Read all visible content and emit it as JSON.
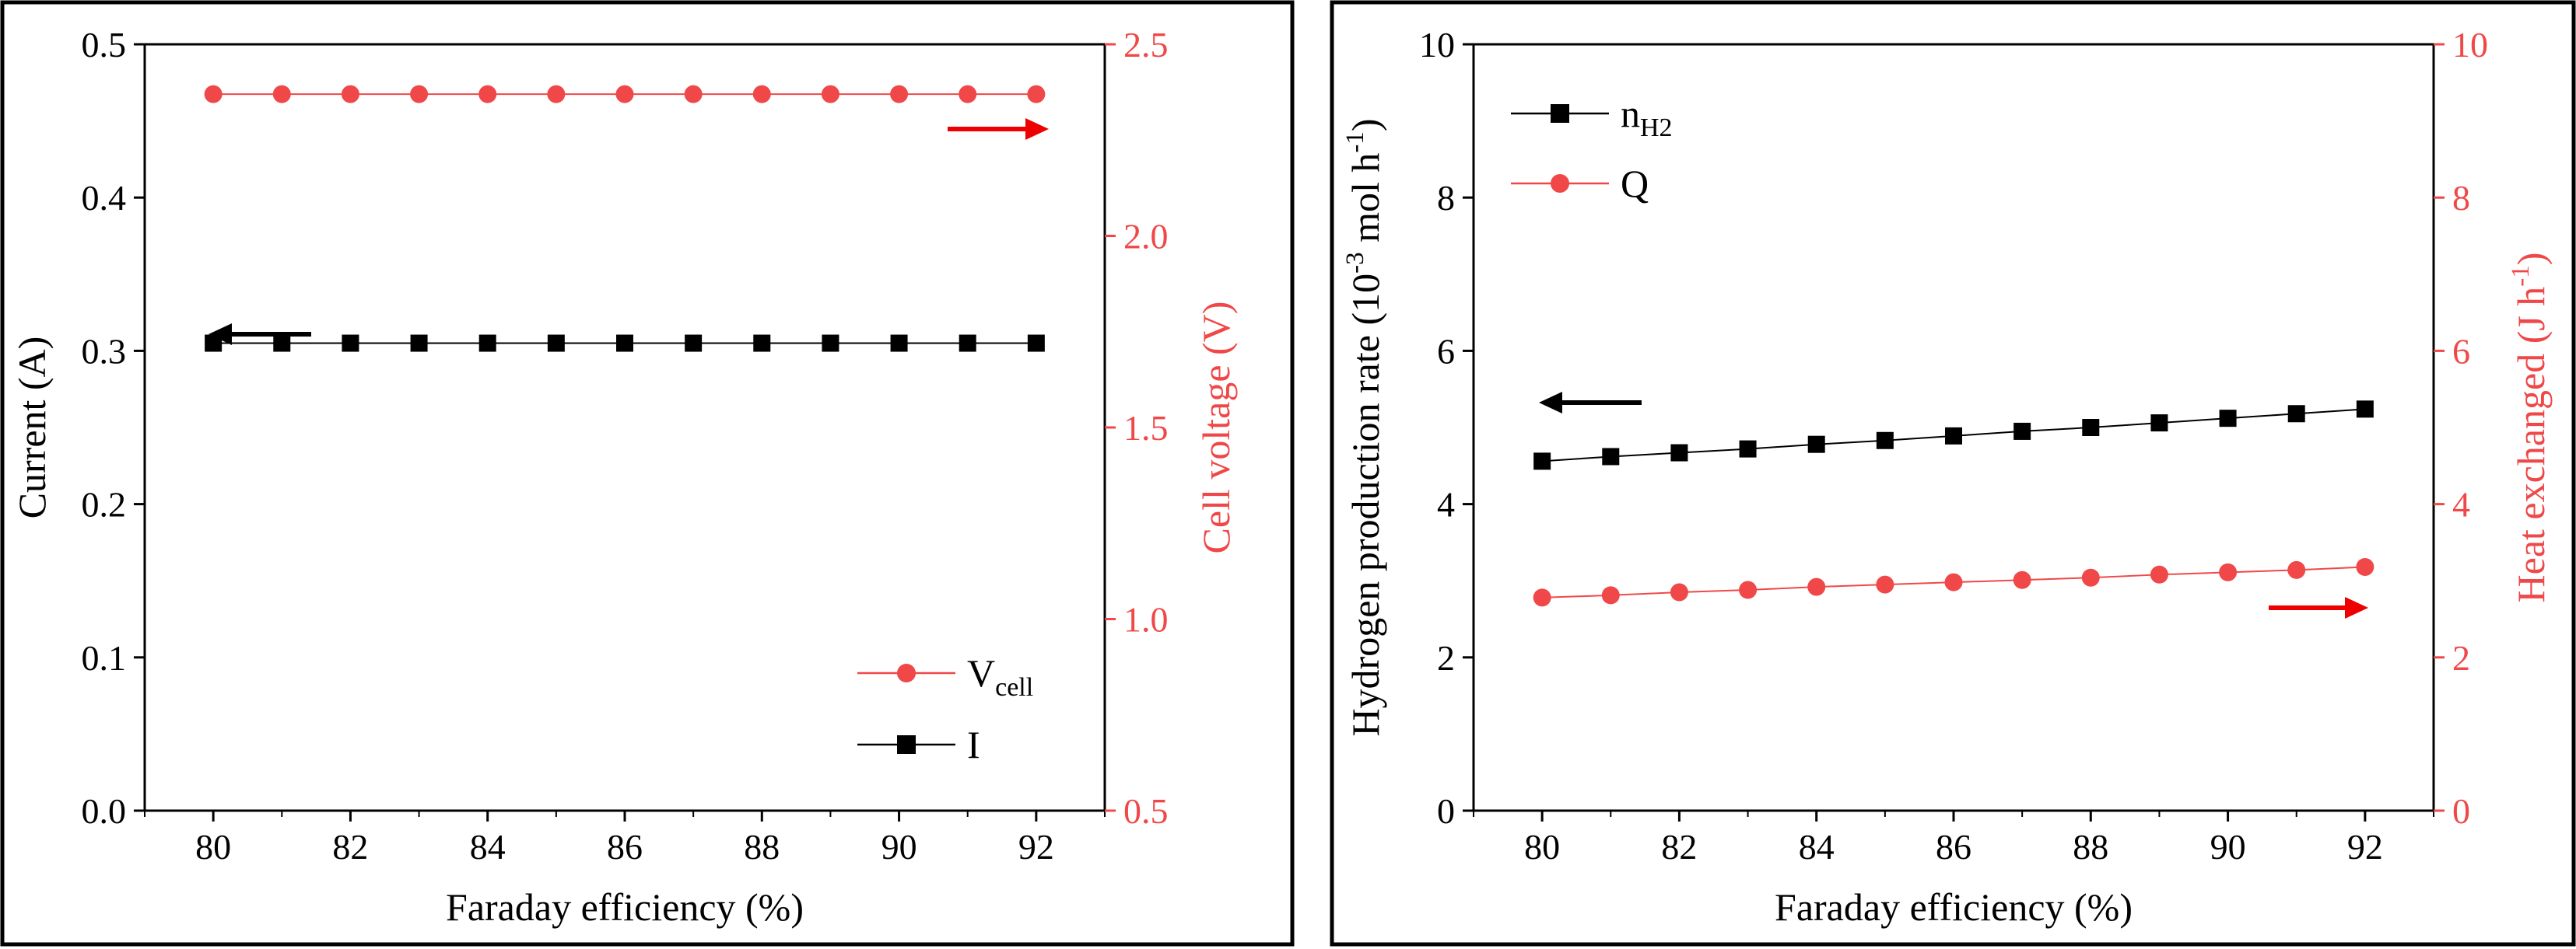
{
  "chart_data": [
    {
      "type": "line",
      "x": [
        80,
        81,
        82,
        83,
        84,
        85,
        86,
        87,
        88,
        89,
        90,
        91,
        92
      ],
      "xlabel": "Faraday efficiency (%)",
      "xlim": [
        79,
        93
      ],
      "x_ticks": [
        80,
        82,
        84,
        86,
        88,
        90,
        92
      ],
      "ylabel": "Current (A)",
      "ylim": [
        0,
        0.5
      ],
      "y_ticks": [
        "0.0",
        "0.1",
        "0.2",
        "0.3",
        "0.4",
        "0.5"
      ],
      "y2label": "Cell voltage (V)",
      "y2lim": [
        0.5,
        2.5
      ],
      "y2_ticks": [
        "0.5",
        "1.0",
        "1.5",
        "2.0",
        "2.5"
      ],
      "legend_position": "bottom-right",
      "series": [
        {
          "name": "I",
          "name_sub": "",
          "axis": "left",
          "marker": "square",
          "color": "#000000",
          "values": [
            0.305,
            0.305,
            0.305,
            0.305,
            0.305,
            0.305,
            0.305,
            0.305,
            0.305,
            0.305,
            0.305,
            0.305,
            0.305
          ]
        },
        {
          "name": "V",
          "name_sub": "cell",
          "axis": "right",
          "marker": "circle",
          "color": "#f04848",
          "values": [
            2.37,
            2.37,
            2.37,
            2.37,
            2.37,
            2.37,
            2.37,
            2.37,
            2.37,
            2.37,
            2.37,
            2.37,
            2.37
          ]
        }
      ],
      "annotations": [
        {
          "kind": "arrow",
          "direction": "left",
          "color": "#000000",
          "meaning": "series I uses left axis"
        },
        {
          "kind": "arrow",
          "direction": "right",
          "color": "#ee0000",
          "meaning": "series V_cell uses right axis"
        }
      ]
    },
    {
      "type": "line",
      "x": [
        80,
        81,
        82,
        83,
        84,
        85,
        86,
        87,
        88,
        89,
        90,
        91,
        92
      ],
      "xlabel": "Faraday efficiency (%)",
      "xlim": [
        79,
        93
      ],
      "x_ticks": [
        80,
        82,
        84,
        86,
        88,
        90,
        92
      ],
      "ylabel": {
        "main": "Hydrogen production rate (10",
        "sup": "-3",
        "rest": " mol h",
        "sup2": "-1",
        "end": ")"
      },
      "ylim": [
        0,
        10
      ],
      "y_ticks": [
        "0",
        "2",
        "4",
        "6",
        "8",
        "10"
      ],
      "y2label": {
        "main": "Heat exchanged (J h",
        "sup": "-1",
        "end": ")"
      },
      "y2lim": [
        0,
        10
      ],
      "y2_ticks": [
        "0",
        "2",
        "4",
        "6",
        "8",
        "10"
      ],
      "legend_position": "top-left",
      "series": [
        {
          "name": "n",
          "name_sub": "H2",
          "axis": "left",
          "marker": "square",
          "color": "#000000",
          "values": [
            4.56,
            4.62,
            4.67,
            4.72,
            4.78,
            4.83,
            4.89,
            4.95,
            5.0,
            5.06,
            5.12,
            5.18,
            5.24
          ]
        },
        {
          "name": "Q",
          "name_sub": "",
          "axis": "right",
          "marker": "circle",
          "color": "#f04848",
          "values": [
            2.78,
            2.81,
            2.85,
            2.88,
            2.92,
            2.95,
            2.98,
            3.01,
            3.04,
            3.08,
            3.11,
            3.14,
            3.18
          ]
        }
      ],
      "annotations": [
        {
          "kind": "arrow",
          "direction": "left",
          "color": "#000000",
          "meaning": "series n_H2 uses left axis"
        },
        {
          "kind": "arrow",
          "direction": "right",
          "color": "#ee0000",
          "meaning": "series Q uses right axis"
        }
      ]
    }
  ]
}
